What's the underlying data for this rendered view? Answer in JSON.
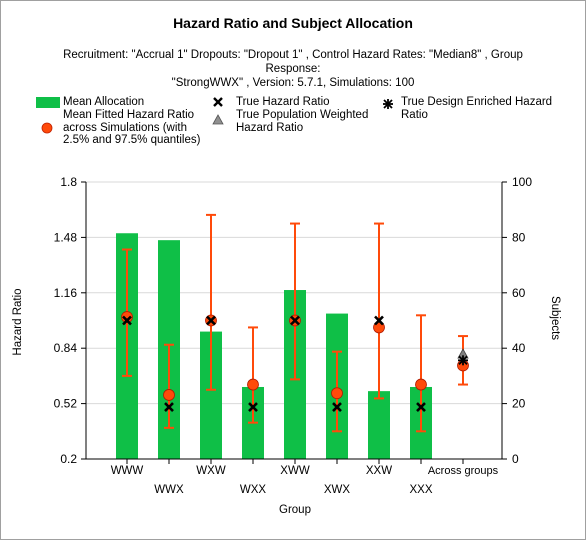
{
  "chart_data": {
    "type": "bar",
    "title": "Hazard Ratio and Subject Allocation",
    "subtitle_line1": "Recruitment: \"Accrual 1\" Dropouts: \"Dropout 1\" , Control Hazard Rates: \"Median8\" , Group Response:",
    "subtitle_line2": "\"StrongWWX\" , Version: 5.7.1, Simulations: 100",
    "xlabel": "Group",
    "ylabel": "Hazard Ratio",
    "y2label": "Subjects",
    "categories": [
      "WWW",
      "WWX",
      "WXW",
      "WXX",
      "XWW",
      "XWX",
      "XXW",
      "XXX",
      "Across groups"
    ],
    "ylim": [
      0.2,
      1.8
    ],
    "yticks": [
      "0.2",
      "0.52",
      "0.84",
      "1.16",
      "1.48",
      "1.8"
    ],
    "y2lim": [
      0,
      100
    ],
    "y2ticks": [
      "0",
      "20",
      "40",
      "60",
      "80",
      "100"
    ],
    "legend": {
      "mean_allocation": "Mean Allocation",
      "fitted_line1": "Mean Fitted Hazard Ratio",
      "fitted_line2": "across Simulations (with",
      "fitted_line3": "2.5% and 97.5% quantiles)",
      "true_hr": "True Hazard Ratio",
      "pop_weighted_line1": "True Population Weighted",
      "pop_weighted_line2": "Hazard Ratio",
      "design_enriched_line1": "True Design Enriched Hazard",
      "design_enriched_line2": "Ratio"
    },
    "series": [
      {
        "name": "Mean Allocation",
        "axis": "right",
        "values": [
          81.5,
          79,
          46,
          26,
          61,
          52.5,
          24.5,
          26,
          null
        ]
      },
      {
        "name": "Mean Fitted Hazard Ratio",
        "axis": "left",
        "values": [
          1.02,
          0.57,
          1.0,
          0.63,
          1.0,
          0.58,
          0.96,
          0.63,
          0.74
        ],
        "lower": [
          0.68,
          0.38,
          0.6,
          0.41,
          0.66,
          0.36,
          0.55,
          0.36,
          0.63
        ],
        "upper": [
          1.41,
          0.86,
          1.61,
          0.96,
          1.56,
          0.82,
          1.56,
          1.03,
          0.91
        ]
      },
      {
        "name": "True Hazard Ratio",
        "axis": "left",
        "values": [
          1.0,
          0.5,
          1.0,
          0.5,
          1.0,
          0.5,
          1.0,
          0.5,
          null
        ]
      },
      {
        "name": "True Population Weighted Hazard Ratio",
        "axis": "left",
        "values": [
          null,
          null,
          null,
          null,
          null,
          null,
          null,
          null,
          0.8
        ]
      },
      {
        "name": "True Design Enriched Hazard Ratio",
        "axis": "left",
        "values": [
          null,
          null,
          null,
          null,
          null,
          null,
          null,
          null,
          0.77
        ]
      }
    ],
    "colors": {
      "bar": "#0fbf47",
      "fitted": "#ff4a0a",
      "errorbar": "#ff4a0a",
      "grid": "#d9d9d9",
      "true_marker": "#000000",
      "weighted_marker": "#808080"
    },
    "grid": true,
    "legend_placement": "top"
  }
}
